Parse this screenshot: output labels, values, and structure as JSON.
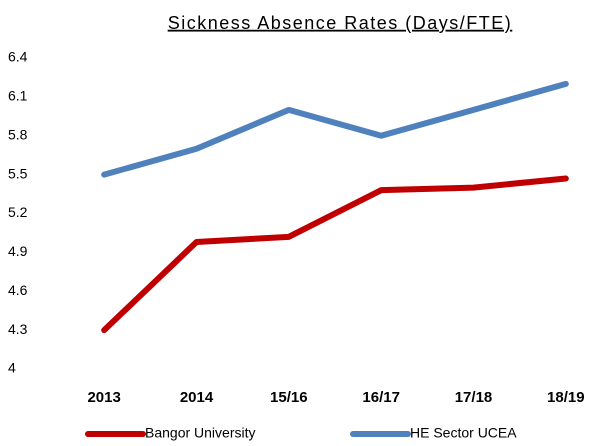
{
  "chart_data": {
    "type": "line",
    "title": "Sickness Absence Rates (Days/FTE)",
    "categories": [
      "2013",
      "2014",
      "15/16",
      "16/17",
      "17/18",
      "18/19"
    ],
    "series": [
      {
        "name": "Bangor University",
        "color": "#c00000",
        "values": [
          4.3,
          4.98,
          5.02,
          5.38,
          5.4,
          5.47
        ]
      },
      {
        "name": "HE Sector UCEA",
        "color": "#4f81bd",
        "values": [
          5.5,
          5.7,
          6.0,
          5.8,
          6.0,
          6.2
        ]
      }
    ],
    "ylim": [
      4,
      6.4
    ],
    "yticks": [
      4,
      4.3,
      4.6,
      4.9,
      5.2,
      5.5,
      5.8,
      6.1,
      6.4
    ],
    "grid": false,
    "legend": "bottom"
  }
}
